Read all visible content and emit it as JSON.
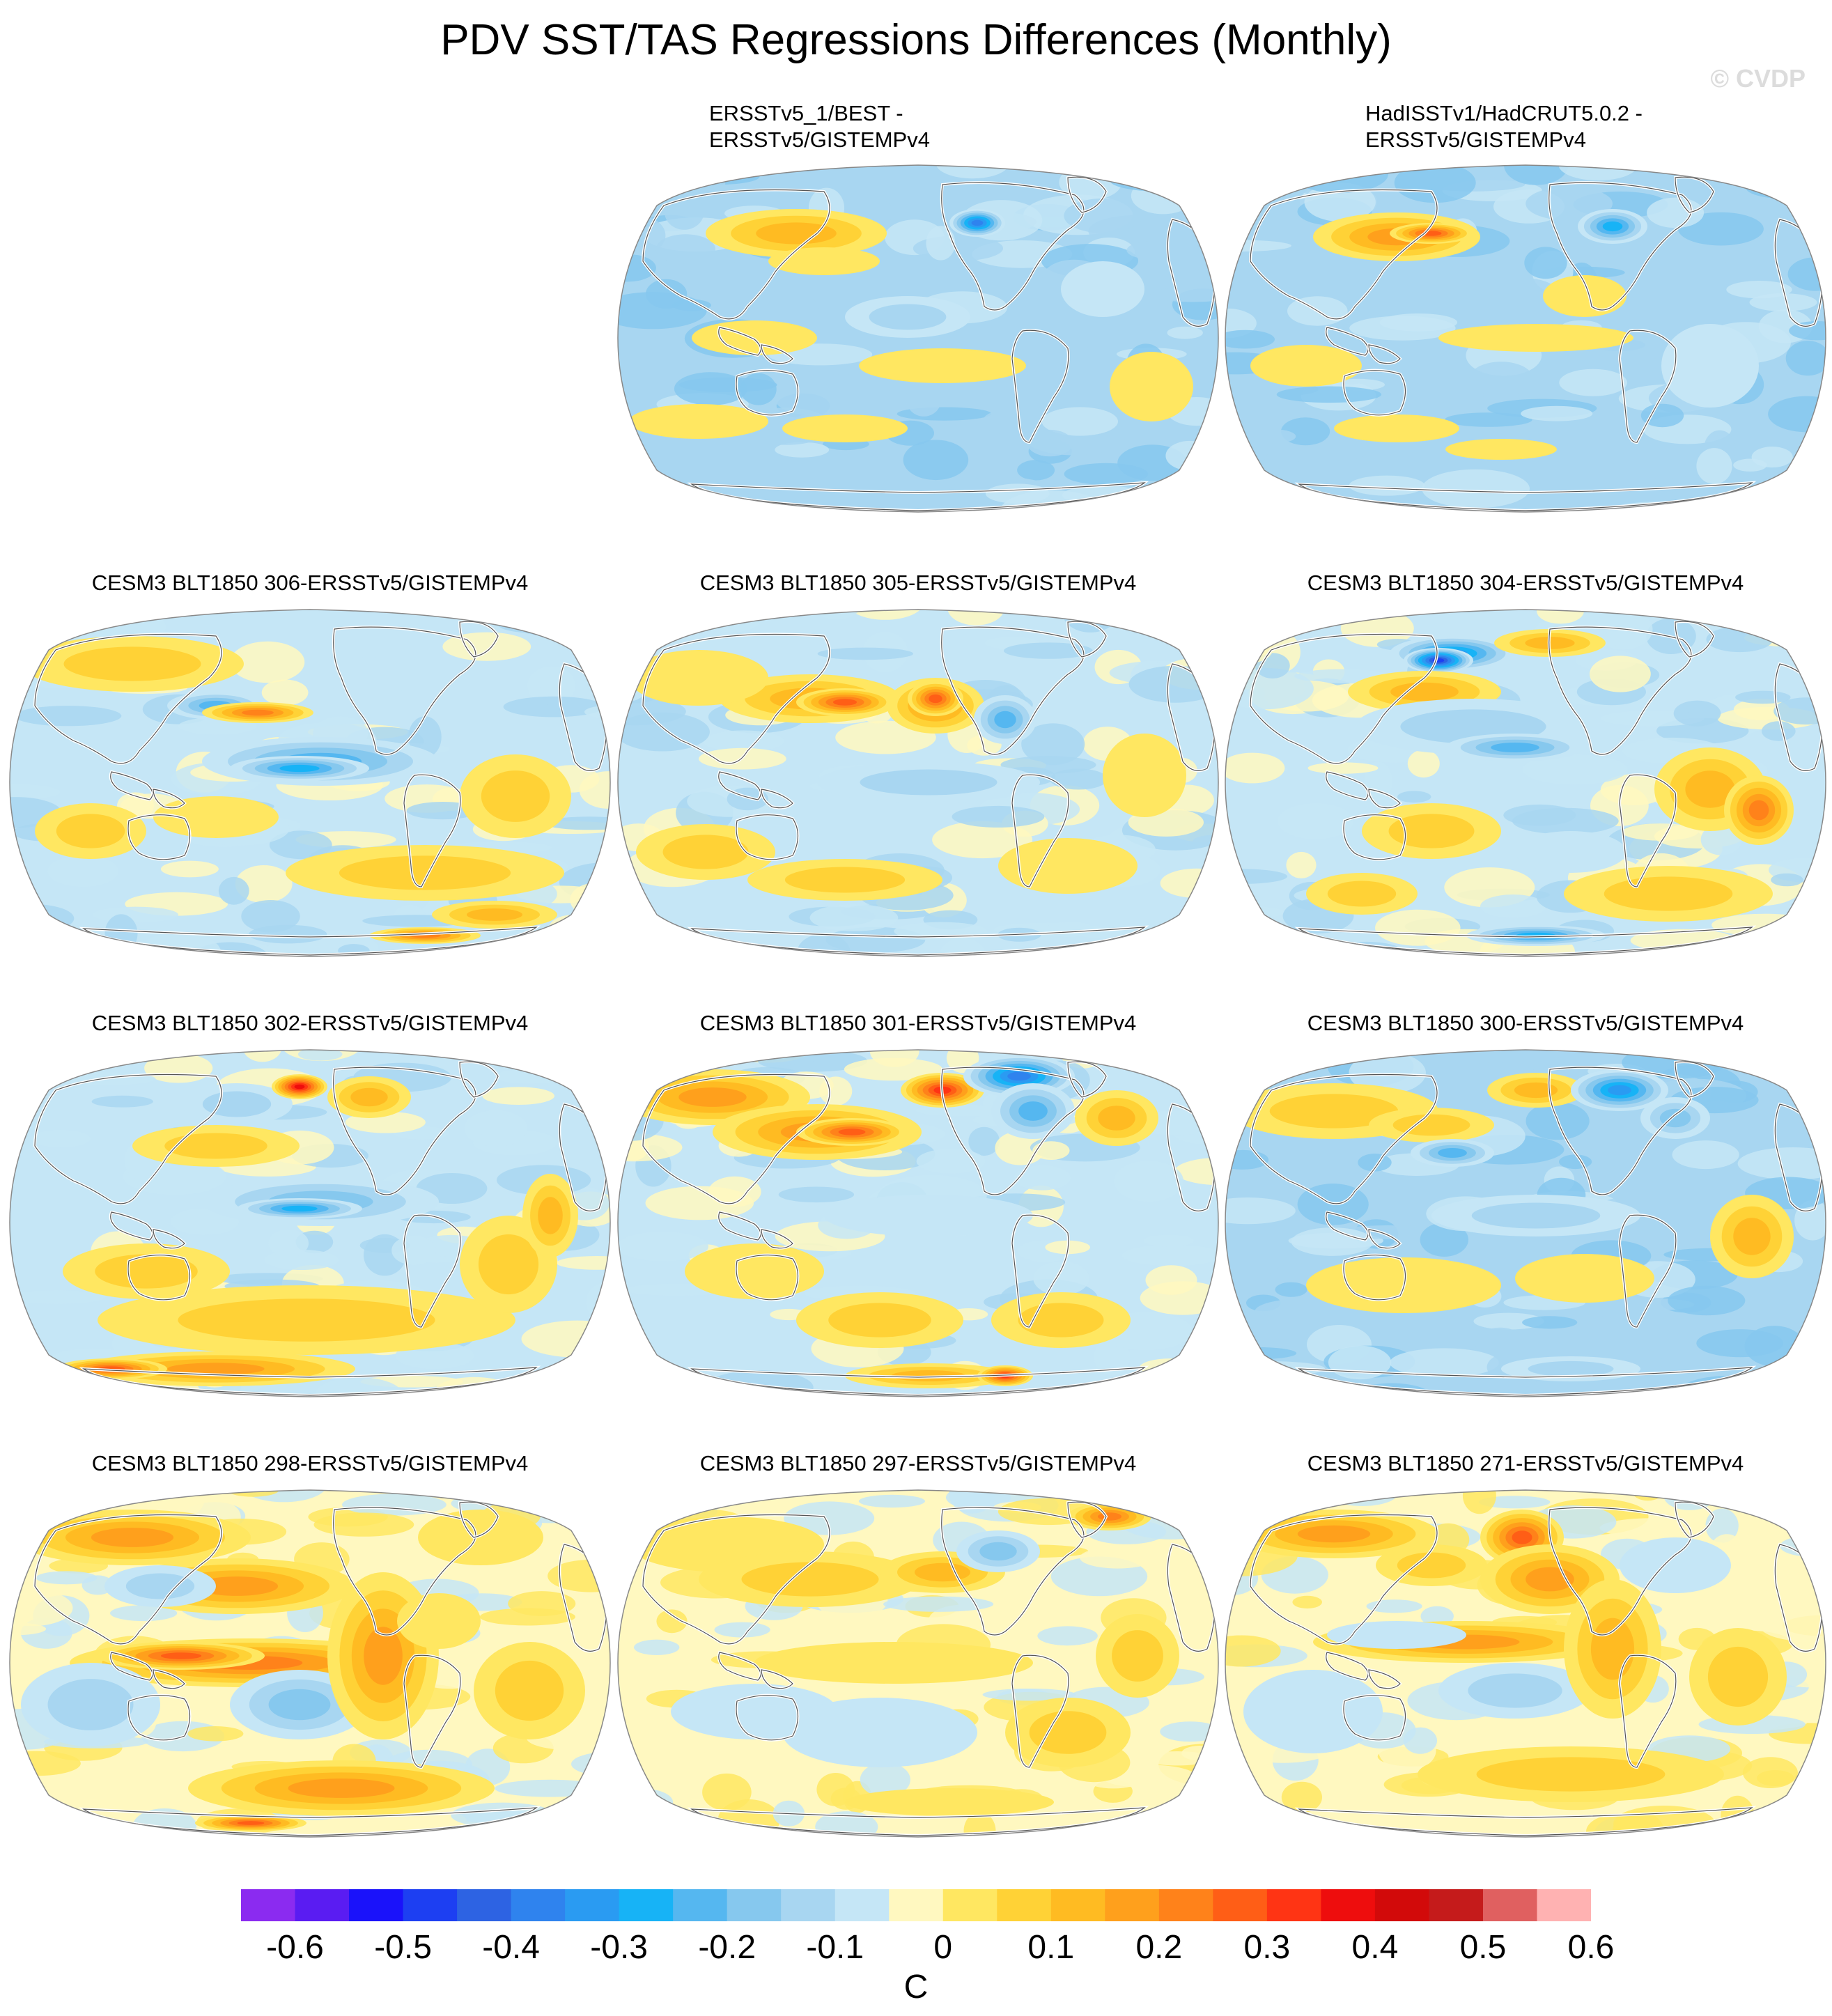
{
  "title": "PDV SST/TAS Regressions Differences (Monthly)",
  "watermark": "© CVDP",
  "colors": {
    "levels": [
      "#8b2bf0",
      "#5a1cf2",
      "#1a12fa",
      "#1d3ff2",
      "#2d63e3",
      "#2f83ee",
      "#2a9bf2",
      "#17b3f6",
      "#55b7f0",
      "#86c8ee",
      "#a8d6f1",
      "#c5e6f6",
      "#fff8c0",
      "#ffe761",
      "#ffd236",
      "#ffbb22",
      "#ffa01c",
      "#ff821a",
      "#ff5e16",
      "#ff3414",
      "#ee0d0d",
      "#d20a0a",
      "#c51b1b",
      "#e06060",
      "#ffb2b2"
    ],
    "land_outline": "#ffffff",
    "coast": "#555555"
  },
  "colorbar": {
    "labels": [
      "-0.6",
      "-0.5",
      "-0.4",
      "-0.3",
      "-0.2",
      "-0.1",
      "0",
      "0.1",
      "0.2",
      "0.3",
      "0.4",
      "0.5",
      "0.6"
    ],
    "unit": "C"
  },
  "chart_data": [
    {
      "type": "heatmap",
      "title": [
        "ERSSTv5_1/BEST -",
        "ERSSTv5/GISTEMPv4"
      ],
      "pattern": "weak-mixed"
    },
    {
      "type": "heatmap",
      "title": [
        "HadISSTv1/HadCRUT5.0.2 -",
        "ERSSTv5/GISTEMPv4"
      ],
      "pattern": "weak-cool-gaps"
    },
    {
      "type": "heatmap",
      "title": "CESM3 BLT1850 306-ERSSTv5/GISTEMPv4",
      "pattern": "cool-tropical-pacific"
    },
    {
      "type": "heatmap",
      "title": "CESM3 BLT1850 305-ERSSTv5/GISTEMPv4",
      "pattern": "warm-north-pacific"
    },
    {
      "type": "heatmap",
      "title": "CESM3 BLT1850 304-ERSSTv5/GISTEMPv4",
      "pattern": "strong-cool-north-pacific"
    },
    {
      "type": "heatmap",
      "title": "CESM3 BLT1850 302-ERSSTv5/GISTEMPv4",
      "pattern": "cool-tropics-warm-south"
    },
    {
      "type": "heatmap",
      "title": "CESM3 BLT1850 301-ERSSTv5/GISTEMPv4",
      "pattern": "warm-north-pacific-strong"
    },
    {
      "type": "heatmap",
      "title": "CESM3 BLT1850 300-ERSSTv5/GISTEMPv4",
      "pattern": "weak-cool"
    },
    {
      "type": "heatmap",
      "title": "CESM3 BLT1850 298-ERSSTv5/GISTEMPv4",
      "pattern": "warm-horseshoe"
    },
    {
      "type": "heatmap",
      "title": "CESM3 BLT1850 297-ERSSTv5/GISTEMPv4",
      "pattern": "weak-warm"
    },
    {
      "type": "heatmap",
      "title": "CESM3 BLT1850 271-ERSSTv5/GISTEMPv4",
      "pattern": "warm-horseshoe-moderate"
    }
  ]
}
